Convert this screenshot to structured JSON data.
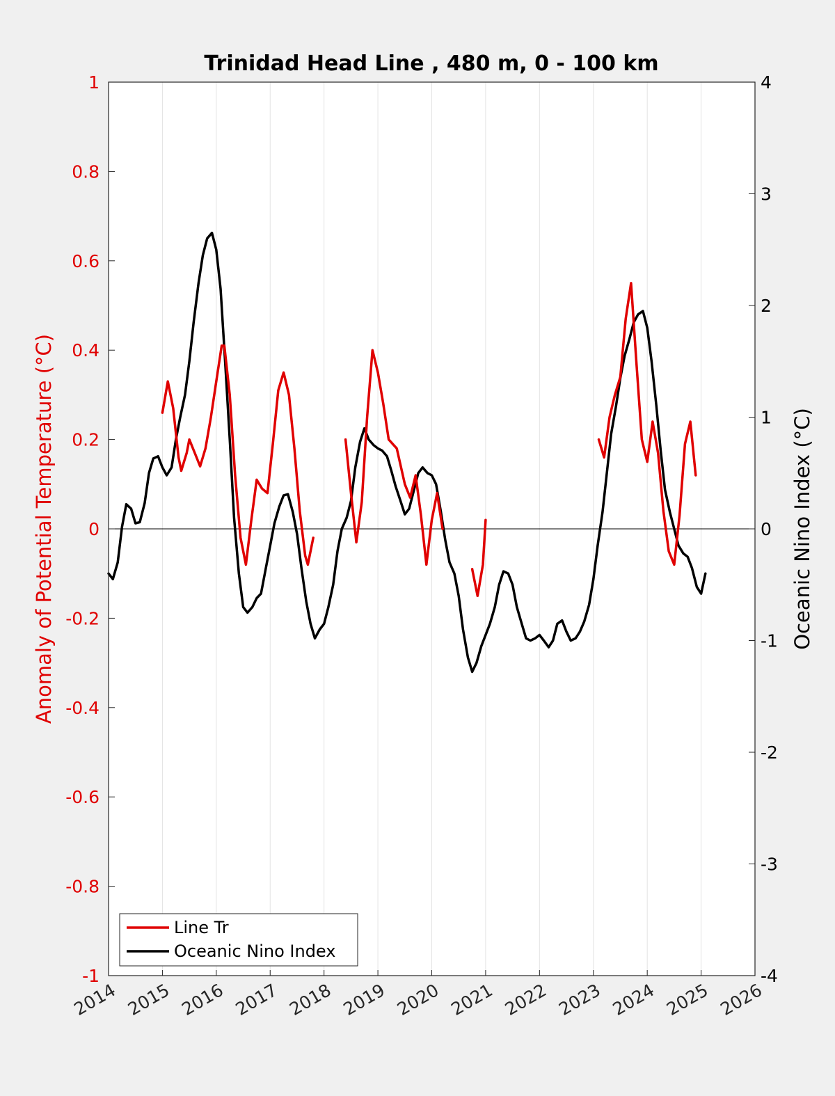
{
  "chart_data": {
    "type": "line",
    "title": "Trinidad Head Line , 480 m, 0 - 100 km",
    "xlim": [
      2014,
      2026
    ],
    "x_ticks": [
      "2014",
      "2015",
      "2016",
      "2017",
      "2018",
      "2019",
      "2020",
      "2021",
      "2022",
      "2023",
      "2024",
      "2025",
      "2026"
    ],
    "y_left": {
      "label": "Anomaly of Potential Temperature (°C)",
      "ylim": [
        -1,
        1
      ],
      "ticks": [
        "-1",
        "-0.8",
        "-0.6",
        "-0.4",
        "-0.2",
        "0",
        "0.2",
        "0.4",
        "0.6",
        "0.8",
        "1"
      ],
      "color": "#e00000"
    },
    "y_right": {
      "label": "Oceanic Nino Index (°C)",
      "ylim": [
        -4,
        4
      ],
      "ticks": [
        "-4",
        "-3",
        "-2",
        "-1",
        "0",
        "1",
        "2",
        "3",
        "4"
      ],
      "color": "#000000"
    },
    "grid_x": true,
    "legend_position": "bottom-left",
    "series": [
      {
        "name": "Line Tr",
        "axis": "left",
        "color": "#e00000",
        "segments": [
          [
            [
              2015.0,
              0.26
            ],
            [
              2015.1,
              0.33
            ],
            [
              2015.2,
              0.27
            ],
            [
              2015.3,
              0.16
            ],
            [
              2015.35,
              0.13
            ],
            [
              2015.45,
              0.17
            ],
            [
              2015.5,
              0.2
            ],
            [
              2015.6,
              0.17
            ],
            [
              2015.7,
              0.14
            ],
            [
              2015.8,
              0.18
            ],
            [
              2015.9,
              0.25
            ],
            [
              2016.0,
              0.33
            ],
            [
              2016.1,
              0.41
            ],
            [
              2016.15,
              0.41
            ],
            [
              2016.25,
              0.3
            ],
            [
              2016.35,
              0.12
            ],
            [
              2016.45,
              -0.02
            ],
            [
              2016.55,
              -0.08
            ],
            [
              2016.65,
              0.02
            ],
            [
              2016.75,
              0.11
            ],
            [
              2016.85,
              0.09
            ],
            [
              2016.95,
              0.08
            ],
            [
              2017.05,
              0.19
            ],
            [
              2017.15,
              0.31
            ],
            [
              2017.25,
              0.35
            ],
            [
              2017.35,
              0.3
            ],
            [
              2017.45,
              0.18
            ],
            [
              2017.55,
              0.04
            ],
            [
              2017.65,
              -0.06
            ],
            [
              2017.7,
              -0.08
            ],
            [
              2017.8,
              -0.02
            ]
          ],
          [
            [
              2018.4,
              0.2
            ],
            [
              2018.5,
              0.08
            ],
            [
              2018.6,
              -0.03
            ],
            [
              2018.7,
              0.06
            ],
            [
              2018.8,
              0.25
            ],
            [
              2018.9,
              0.4
            ],
            [
              2019.0,
              0.35
            ],
            [
              2019.1,
              0.28
            ],
            [
              2019.2,
              0.2
            ],
            [
              2019.35,
              0.18
            ],
            [
              2019.5,
              0.1
            ],
            [
              2019.6,
              0.07
            ],
            [
              2019.7,
              0.12
            ],
            [
              2019.8,
              0.03
            ],
            [
              2019.9,
              -0.08
            ],
            [
              2020.0,
              0.02
            ],
            [
              2020.1,
              0.08
            ],
            [
              2020.2,
              0.0
            ]
          ],
          [
            [
              2020.75,
              -0.09
            ],
            [
              2020.85,
              -0.15
            ],
            [
              2020.95,
              -0.08
            ],
            [
              2021.0,
              0.02
            ]
          ],
          [
            [
              2023.1,
              0.2
            ],
            [
              2023.2,
              0.16
            ],
            [
              2023.3,
              0.25
            ],
            [
              2023.4,
              0.3
            ],
            [
              2023.5,
              0.34
            ],
            [
              2023.6,
              0.47
            ],
            [
              2023.7,
              0.55
            ],
            [
              2023.8,
              0.37
            ],
            [
              2023.9,
              0.2
            ],
            [
              2024.0,
              0.15
            ],
            [
              2024.1,
              0.24
            ],
            [
              2024.2,
              0.17
            ],
            [
              2024.3,
              0.04
            ],
            [
              2024.4,
              -0.05
            ],
            [
              2024.5,
              -0.08
            ],
            [
              2024.6,
              0.03
            ],
            [
              2024.7,
              0.19
            ],
            [
              2024.8,
              0.24
            ],
            [
              2024.9,
              0.12
            ]
          ]
        ]
      },
      {
        "name": "Oceanic Nino Index",
        "axis": "right",
        "color": "#000000",
        "segments": [
          [
            [
              2014.0,
              -0.4
            ],
            [
              2014.08,
              -0.45
            ],
            [
              2014.17,
              -0.3
            ],
            [
              2014.25,
              0.02
            ],
            [
              2014.33,
              0.22
            ],
            [
              2014.42,
              0.18
            ],
            [
              2014.5,
              0.05
            ],
            [
              2014.58,
              0.06
            ],
            [
              2014.67,
              0.23
            ],
            [
              2014.75,
              0.5
            ],
            [
              2014.83,
              0.63
            ],
            [
              2014.92,
              0.65
            ],
            [
              2015.0,
              0.55
            ],
            [
              2015.08,
              0.48
            ],
            [
              2015.17,
              0.55
            ],
            [
              2015.25,
              0.8
            ],
            [
              2015.33,
              1.0
            ],
            [
              2015.42,
              1.2
            ],
            [
              2015.5,
              1.5
            ],
            [
              2015.58,
              1.85
            ],
            [
              2015.67,
              2.2
            ],
            [
              2015.75,
              2.45
            ],
            [
              2015.83,
              2.6
            ],
            [
              2015.92,
              2.65
            ],
            [
              2016.0,
              2.5
            ],
            [
              2016.08,
              2.15
            ],
            [
              2016.17,
              1.45
            ],
            [
              2016.25,
              0.8
            ],
            [
              2016.33,
              0.1
            ],
            [
              2016.42,
              -0.4
            ],
            [
              2016.5,
              -0.7
            ],
            [
              2016.58,
              -0.75
            ],
            [
              2016.67,
              -0.7
            ],
            [
              2016.75,
              -0.62
            ],
            [
              2016.83,
              -0.58
            ],
            [
              2016.92,
              -0.35
            ],
            [
              2017.0,
              -0.15
            ],
            [
              2017.08,
              0.05
            ],
            [
              2017.17,
              0.2
            ],
            [
              2017.25,
              0.3
            ],
            [
              2017.33,
              0.31
            ],
            [
              2017.42,
              0.15
            ],
            [
              2017.5,
              -0.05
            ],
            [
              2017.58,
              -0.35
            ],
            [
              2017.67,
              -0.65
            ],
            [
              2017.75,
              -0.85
            ],
            [
              2017.83,
              -0.98
            ],
            [
              2017.92,
              -0.9
            ],
            [
              2018.0,
              -0.85
            ],
            [
              2018.08,
              -0.7
            ],
            [
              2018.17,
              -0.5
            ],
            [
              2018.25,
              -0.2
            ],
            [
              2018.33,
              0.0
            ],
            [
              2018.42,
              0.1
            ],
            [
              2018.5,
              0.25
            ],
            [
              2018.58,
              0.55
            ],
            [
              2018.67,
              0.78
            ],
            [
              2018.75,
              0.9
            ],
            [
              2018.83,
              0.8
            ],
            [
              2018.92,
              0.75
            ],
            [
              2019.0,
              0.72
            ],
            [
              2019.08,
              0.7
            ],
            [
              2019.17,
              0.65
            ],
            [
              2019.25,
              0.52
            ],
            [
              2019.33,
              0.38
            ],
            [
              2019.42,
              0.25
            ],
            [
              2019.5,
              0.13
            ],
            [
              2019.58,
              0.18
            ],
            [
              2019.67,
              0.35
            ],
            [
              2019.75,
              0.5
            ],
            [
              2019.83,
              0.55
            ],
            [
              2019.92,
              0.5
            ],
            [
              2020.0,
              0.48
            ],
            [
              2020.08,
              0.4
            ],
            [
              2020.17,
              0.15
            ],
            [
              2020.25,
              -0.1
            ],
            [
              2020.33,
              -0.3
            ],
            [
              2020.42,
              -0.4
            ],
            [
              2020.5,
              -0.6
            ],
            [
              2020.58,
              -0.9
            ],
            [
              2020.67,
              -1.15
            ],
            [
              2020.75,
              -1.28
            ],
            [
              2020.83,
              -1.2
            ],
            [
              2020.92,
              -1.05
            ],
            [
              2021.0,
              -0.95
            ],
            [
              2021.08,
              -0.85
            ],
            [
              2021.17,
              -0.7
            ],
            [
              2021.25,
              -0.5
            ],
            [
              2021.33,
              -0.38
            ],
            [
              2021.42,
              -0.4
            ],
            [
              2021.5,
              -0.5
            ],
            [
              2021.58,
              -0.7
            ],
            [
              2021.67,
              -0.85
            ],
            [
              2021.75,
              -0.98
            ],
            [
              2021.83,
              -1.0
            ],
            [
              2021.92,
              -0.98
            ],
            [
              2022.0,
              -0.95
            ],
            [
              2022.08,
              -1.0
            ],
            [
              2022.17,
              -1.06
            ],
            [
              2022.25,
              -1.0
            ],
            [
              2022.33,
              -0.85
            ],
            [
              2022.42,
              -0.82
            ],
            [
              2022.5,
              -0.92
            ],
            [
              2022.58,
              -1.0
            ],
            [
              2022.67,
              -0.98
            ],
            [
              2022.75,
              -0.92
            ],
            [
              2022.83,
              -0.83
            ],
            [
              2022.92,
              -0.68
            ],
            [
              2023.0,
              -0.45
            ],
            [
              2023.08,
              -0.15
            ],
            [
              2023.17,
              0.15
            ],
            [
              2023.25,
              0.5
            ],
            [
              2023.33,
              0.85
            ],
            [
              2023.42,
              1.1
            ],
            [
              2023.5,
              1.35
            ],
            [
              2023.58,
              1.55
            ],
            [
              2023.67,
              1.7
            ],
            [
              2023.75,
              1.85
            ],
            [
              2023.83,
              1.92
            ],
            [
              2023.92,
              1.95
            ],
            [
              2024.0,
              1.8
            ],
            [
              2024.08,
              1.5
            ],
            [
              2024.17,
              1.1
            ],
            [
              2024.25,
              0.7
            ],
            [
              2024.33,
              0.35
            ],
            [
              2024.42,
              0.15
            ],
            [
              2024.5,
              0.0
            ],
            [
              2024.58,
              -0.15
            ],
            [
              2024.67,
              -0.22
            ],
            [
              2024.75,
              -0.25
            ],
            [
              2024.83,
              -0.35
            ],
            [
              2024.92,
              -0.52
            ],
            [
              2025.0,
              -0.58
            ],
            [
              2025.08,
              -0.4
            ]
          ]
        ]
      }
    ]
  },
  "legend": {
    "items": [
      {
        "label": "Line Tr",
        "color": "#e00000"
      },
      {
        "label": "Oceanic Nino Index",
        "color": "#000000"
      }
    ]
  }
}
